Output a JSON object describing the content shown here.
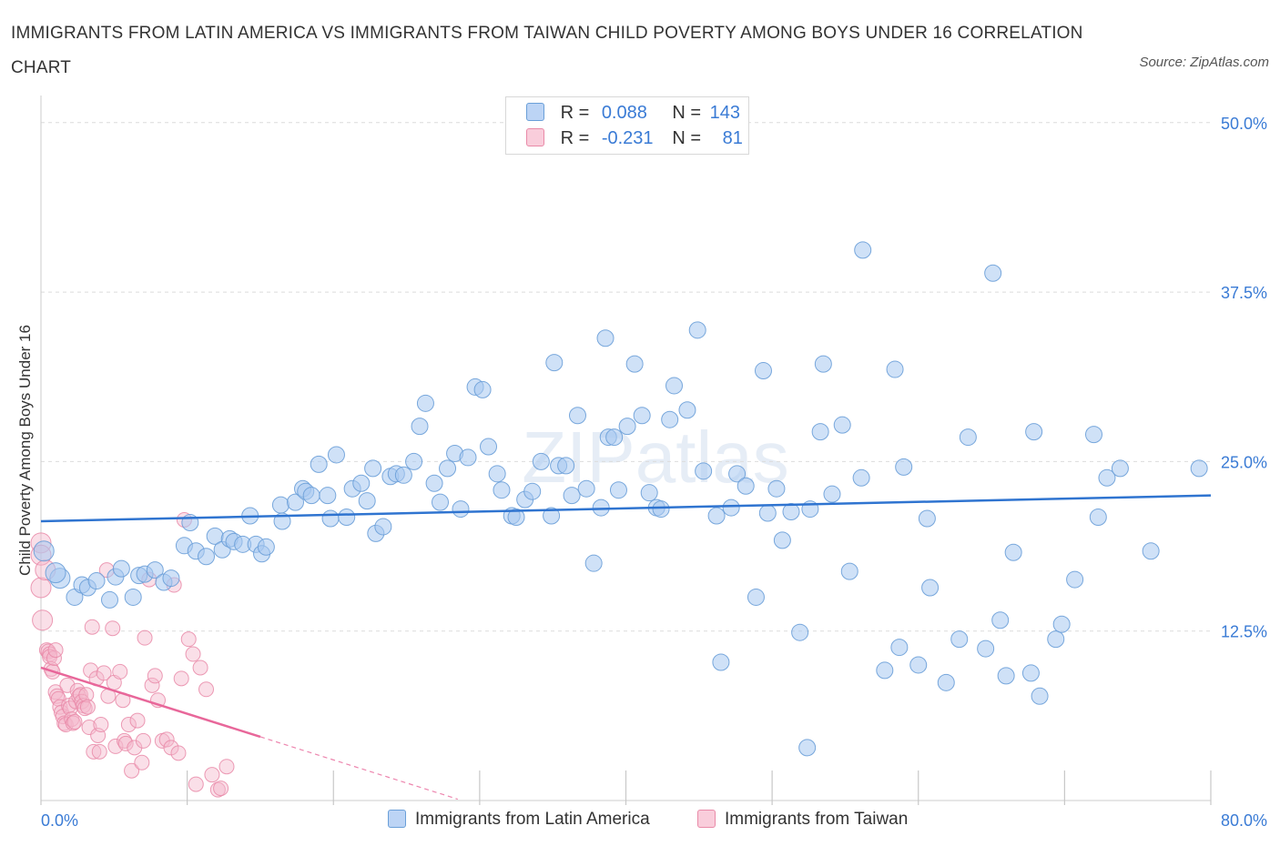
{
  "title": "IMMIGRANTS FROM LATIN AMERICA VS IMMIGRANTS FROM TAIWAN CHILD POVERTY AMONG BOYS UNDER 16 CORRELATION CHART",
  "source": "Source: ZipAtlas.com",
  "watermark": "ZIPatlas",
  "legend_top": {
    "rows": [
      {
        "r_label": "R =",
        "r_value": "0.088",
        "n_label": "N =",
        "n_value": "143",
        "color": "#a8c8f0"
      },
      {
        "r_label": "R =",
        "r_value": "-0.231",
        "n_label": "N =",
        "n_value": "81",
        "color": "#f4b8cb"
      }
    ]
  },
  "legend_bottom": [
    {
      "label": "Immigrants from Latin America",
      "color": "#a8c8f0"
    },
    {
      "label": "Immigrants from Taiwan",
      "color": "#f4b8cb"
    }
  ],
  "chart_data": {
    "type": "scatter",
    "xlabel": "",
    "ylabel": "Child Poverty Among Boys Under 16",
    "xlim": [
      0,
      80
    ],
    "ylim": [
      0,
      52
    ],
    "x_tick_labels": [
      {
        "value": 0,
        "label": "0.0%"
      },
      {
        "value": 80,
        "label": "80.0%"
      }
    ],
    "y_tick_labels": [
      {
        "value": 12.5,
        "label": "12.5%"
      },
      {
        "value": 25,
        "label": "25.0%"
      },
      {
        "value": 37.5,
        "label": "37.5%"
      },
      {
        "value": 50,
        "label": "50.0%"
      }
    ],
    "grid": true,
    "series": [
      {
        "name": "Immigrants from Latin America",
        "color": "#a8c8f0",
        "edge": "#6a9fd8",
        "trend": {
          "x": [
            0,
            80
          ],
          "y": [
            20.6,
            22.5
          ],
          "color": "#2f74d0"
        },
        "points": [
          [
            0.2,
            18.4
          ],
          [
            1.3,
            16.4
          ],
          [
            1.0,
            16.8
          ],
          [
            2.3,
            15.0
          ],
          [
            2.8,
            15.9
          ],
          [
            3.2,
            15.7
          ],
          [
            3.8,
            16.2
          ],
          [
            4.7,
            14.8
          ],
          [
            5.1,
            16.5
          ],
          [
            5.5,
            17.1
          ],
          [
            6.3,
            15.0
          ],
          [
            6.7,
            16.6
          ],
          [
            7.1,
            16.7
          ],
          [
            7.8,
            17.0
          ],
          [
            8.4,
            16.1
          ],
          [
            8.9,
            16.4
          ],
          [
            9.8,
            18.8
          ],
          [
            10.2,
            20.5
          ],
          [
            10.6,
            18.4
          ],
          [
            11.3,
            18.0
          ],
          [
            11.9,
            19.5
          ],
          [
            12.4,
            18.5
          ],
          [
            12.9,
            19.3
          ],
          [
            13.2,
            19.1
          ],
          [
            13.8,
            18.9
          ],
          [
            14.3,
            21.0
          ],
          [
            14.7,
            18.9
          ],
          [
            15.1,
            18.2
          ],
          [
            15.4,
            18.7
          ],
          [
            16.4,
            21.8
          ],
          [
            16.5,
            20.6
          ],
          [
            17.4,
            22.0
          ],
          [
            17.9,
            23.0
          ],
          [
            18.1,
            22.8
          ],
          [
            18.5,
            22.5
          ],
          [
            19.0,
            24.8
          ],
          [
            19.6,
            22.5
          ],
          [
            19.8,
            20.8
          ],
          [
            20.2,
            25.5
          ],
          [
            20.9,
            20.9
          ],
          [
            21.3,
            23.0
          ],
          [
            21.9,
            23.4
          ],
          [
            22.3,
            22.1
          ],
          [
            22.7,
            24.5
          ],
          [
            22.9,
            19.7
          ],
          [
            23.4,
            20.2
          ],
          [
            23.9,
            23.9
          ],
          [
            24.3,
            24.1
          ],
          [
            24.8,
            24.0
          ],
          [
            25.5,
            25.0
          ],
          [
            25.9,
            27.6
          ],
          [
            26.3,
            29.3
          ],
          [
            26.9,
            23.4
          ],
          [
            27.3,
            22.0
          ],
          [
            27.8,
            24.5
          ],
          [
            28.3,
            25.6
          ],
          [
            28.7,
            21.5
          ],
          [
            29.2,
            25.3
          ],
          [
            29.7,
            30.5
          ],
          [
            30.2,
            30.3
          ],
          [
            30.6,
            26.1
          ],
          [
            31.2,
            24.1
          ],
          [
            31.5,
            22.9
          ],
          [
            32.2,
            21.0
          ],
          [
            32.5,
            20.9
          ],
          [
            33.1,
            22.2
          ],
          [
            33.6,
            22.8
          ],
          [
            34.2,
            25.0
          ],
          [
            34.9,
            21.0
          ],
          [
            35.1,
            32.3
          ],
          [
            35.4,
            24.7
          ],
          [
            35.9,
            24.7
          ],
          [
            36.3,
            22.5
          ],
          [
            36.7,
            28.4
          ],
          [
            37.3,
            23.0
          ],
          [
            37.8,
            17.5
          ],
          [
            38.3,
            21.6
          ],
          [
            38.6,
            34.1
          ],
          [
            38.8,
            26.8
          ],
          [
            39.2,
            26.8
          ],
          [
            39.5,
            22.9
          ],
          [
            40.1,
            27.6
          ],
          [
            40.6,
            32.2
          ],
          [
            41.1,
            28.4
          ],
          [
            41.6,
            22.7
          ],
          [
            42.1,
            21.6
          ],
          [
            42.4,
            21.5
          ],
          [
            43.0,
            28.1
          ],
          [
            43.3,
            30.6
          ],
          [
            44.2,
            28.8
          ],
          [
            44.9,
            34.7
          ],
          [
            45.3,
            24.3
          ],
          [
            46.2,
            21.0
          ],
          [
            46.5,
            10.2
          ],
          [
            47.2,
            21.6
          ],
          [
            47.6,
            24.1
          ],
          [
            48.2,
            23.2
          ],
          [
            48.9,
            15.0
          ],
          [
            49.4,
            31.7
          ],
          [
            49.7,
            21.2
          ],
          [
            50.3,
            23.0
          ],
          [
            50.7,
            19.2
          ],
          [
            51.3,
            21.3
          ],
          [
            51.9,
            12.4
          ],
          [
            52.4,
            3.9
          ],
          [
            52.6,
            21.5
          ],
          [
            53.3,
            27.2
          ],
          [
            53.5,
            32.2
          ],
          [
            54.1,
            22.6
          ],
          [
            54.8,
            27.7
          ],
          [
            55.3,
            16.9
          ],
          [
            56.1,
            23.8
          ],
          [
            56.2,
            40.6
          ],
          [
            57.7,
            9.6
          ],
          [
            58.4,
            31.8
          ],
          [
            58.7,
            11.3
          ],
          [
            59.0,
            24.6
          ],
          [
            60.0,
            10.0
          ],
          [
            60.6,
            20.8
          ],
          [
            60.8,
            15.7
          ],
          [
            61.9,
            8.7
          ],
          [
            62.8,
            11.9
          ],
          [
            63.4,
            26.8
          ],
          [
            64.6,
            11.2
          ],
          [
            65.1,
            38.9
          ],
          [
            65.6,
            13.3
          ],
          [
            66.0,
            9.2
          ],
          [
            66.5,
            18.3
          ],
          [
            67.7,
            9.4
          ],
          [
            67.9,
            27.2
          ],
          [
            68.3,
            7.7
          ],
          [
            69.4,
            11.9
          ],
          [
            69.8,
            13.0
          ],
          [
            70.7,
            16.3
          ],
          [
            72.0,
            27.0
          ],
          [
            72.3,
            20.9
          ],
          [
            72.9,
            23.8
          ],
          [
            73.8,
            24.5
          ],
          [
            75.9,
            18.4
          ],
          [
            79.2,
            24.5
          ]
        ]
      },
      {
        "name": "Immigrants from Taiwan",
        "color": "#f4b8cb",
        "edge": "#e98aa8",
        "trend": {
          "x": [
            0,
            15
          ],
          "y": [
            9.8,
            4.7
          ],
          "color": "#e8679a",
          "dashed_extension": {
            "x": [
              15,
              28.5
            ],
            "y": [
              4.7,
              0.1
            ]
          }
        },
        "points": [
          [
            0.0,
            19.0
          ],
          [
            0.0,
            18.1
          ],
          [
            0.0,
            15.7
          ],
          [
            0.1,
            13.3
          ],
          [
            0.3,
            17.0
          ],
          [
            0.4,
            11.1
          ],
          [
            0.5,
            11.0
          ],
          [
            0.6,
            10.8
          ],
          [
            0.6,
            10.6
          ],
          [
            0.7,
            9.7
          ],
          [
            0.8,
            9.5
          ],
          [
            0.9,
            10.5
          ],
          [
            1.0,
            11.1
          ],
          [
            1.0,
            8.0
          ],
          [
            1.1,
            7.7
          ],
          [
            1.2,
            7.5
          ],
          [
            1.3,
            6.9
          ],
          [
            1.4,
            6.5
          ],
          [
            1.5,
            6.2
          ],
          [
            1.6,
            5.7
          ],
          [
            1.7,
            5.6
          ],
          [
            1.8,
            8.5
          ],
          [
            1.9,
            7.0
          ],
          [
            2.0,
            6.8
          ],
          [
            2.1,
            6.0
          ],
          [
            2.2,
            5.7
          ],
          [
            2.3,
            5.8
          ],
          [
            2.4,
            7.3
          ],
          [
            2.5,
            8.1
          ],
          [
            2.6,
            7.7
          ],
          [
            2.7,
            7.8
          ],
          [
            2.8,
            7.3
          ],
          [
            2.9,
            7.0
          ],
          [
            3.0,
            6.8
          ],
          [
            3.1,
            7.8
          ],
          [
            3.2,
            6.9
          ],
          [
            3.3,
            5.4
          ],
          [
            3.4,
            9.6
          ],
          [
            3.5,
            12.8
          ],
          [
            3.6,
            3.6
          ],
          [
            3.8,
            9.0
          ],
          [
            3.9,
            4.8
          ],
          [
            4.0,
            3.6
          ],
          [
            4.1,
            5.6
          ],
          [
            4.3,
            9.4
          ],
          [
            4.5,
            17.0
          ],
          [
            4.6,
            7.7
          ],
          [
            4.9,
            12.7
          ],
          [
            5.0,
            8.7
          ],
          [
            5.1,
            4.0
          ],
          [
            5.4,
            9.5
          ],
          [
            5.6,
            7.4
          ],
          [
            5.7,
            4.4
          ],
          [
            5.8,
            4.2
          ],
          [
            6.0,
            5.6
          ],
          [
            6.2,
            2.2
          ],
          [
            6.4,
            3.9
          ],
          [
            6.6,
            5.9
          ],
          [
            6.9,
            2.8
          ],
          [
            7.0,
            4.4
          ],
          [
            7.1,
            12.0
          ],
          [
            7.4,
            16.3
          ],
          [
            7.6,
            8.5
          ],
          [
            7.8,
            9.2
          ],
          [
            8.0,
            7.4
          ],
          [
            8.3,
            4.4
          ],
          [
            8.6,
            4.5
          ],
          [
            8.9,
            3.9
          ],
          [
            9.1,
            15.9
          ],
          [
            9.4,
            3.5
          ],
          [
            9.6,
            9.0
          ],
          [
            9.8,
            20.7
          ],
          [
            10.1,
            11.9
          ],
          [
            10.4,
            10.8
          ],
          [
            10.6,
            1.2
          ],
          [
            10.9,
            9.8
          ],
          [
            11.3,
            8.2
          ],
          [
            11.7,
            1.9
          ],
          [
            12.1,
            0.8
          ],
          [
            12.3,
            0.9
          ],
          [
            12.7,
            2.5
          ]
        ]
      }
    ]
  }
}
